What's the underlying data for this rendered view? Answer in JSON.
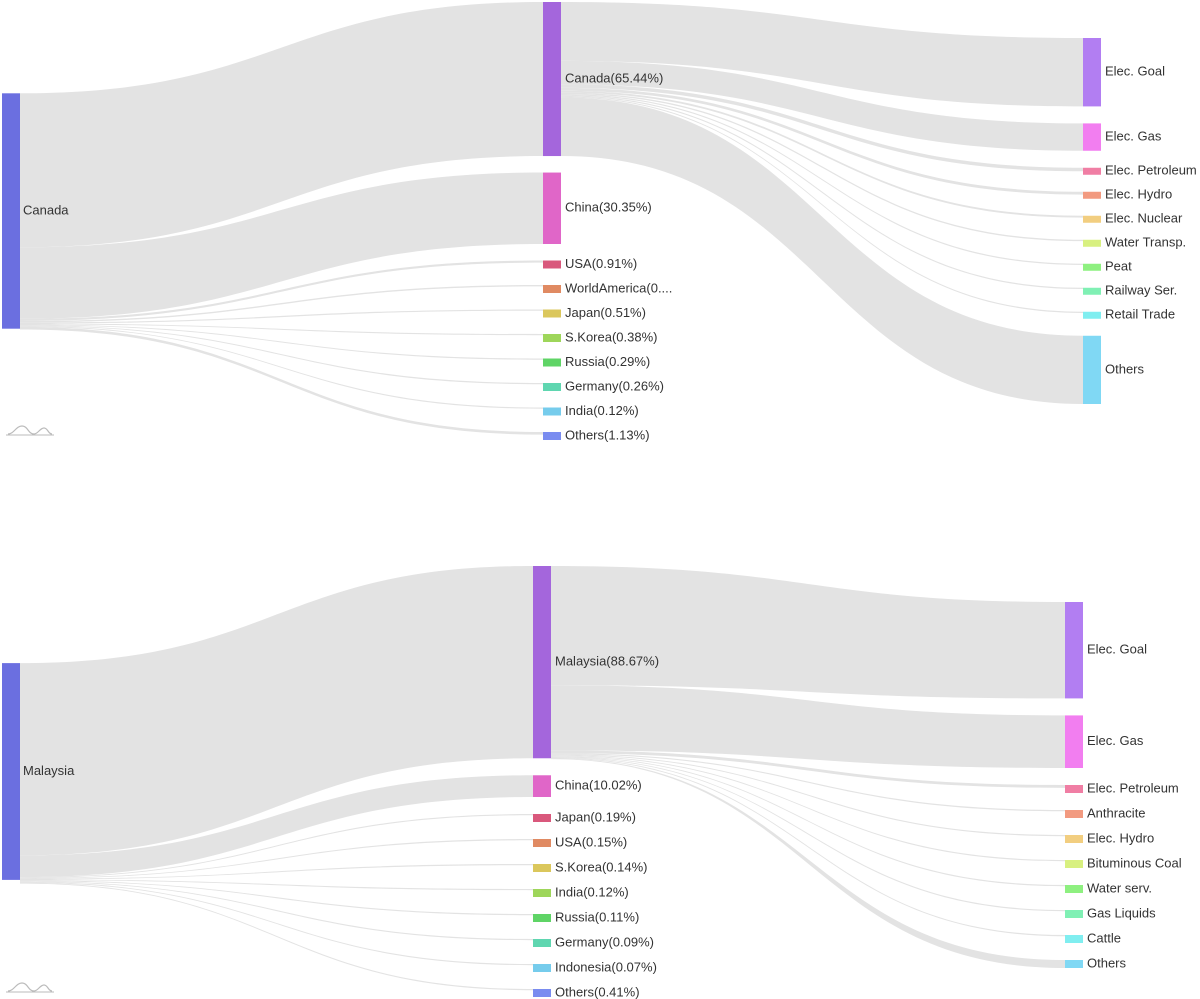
{
  "chart_data": [
    {
      "type": "sankey",
      "name": "canada",
      "source": {
        "label": "Canada",
        "color": "#6b6fe0"
      },
      "countries": [
        {
          "label": "Canada(65.44%)",
          "value": 65.44,
          "color": "#a466dc"
        },
        {
          "label": "China(30.35%)",
          "value": 30.35,
          "color": "#e066c8"
        },
        {
          "label": "USA(0.91%)",
          "value": 0.91,
          "color": "#d9587c"
        },
        {
          "label": "WorldAmerica(0....",
          "value": 0.6,
          "color": "#e08a62"
        },
        {
          "label": "Japan(0.51%)",
          "value": 0.51,
          "color": "#dbc75c"
        },
        {
          "label": "S.Korea(0.38%)",
          "value": 0.38,
          "color": "#9ed65a"
        },
        {
          "label": "Russia(0.29%)",
          "value": 0.29,
          "color": "#5fd466"
        },
        {
          "label": "Germany(0.26%)",
          "value": 0.26,
          "color": "#5fd6b0"
        },
        {
          "label": "India(0.12%)",
          "value": 0.12,
          "color": "#76ccec"
        },
        {
          "label": "Others(1.13%)",
          "value": 1.13,
          "color": "#7a8cf0"
        }
      ],
      "sectors": [
        {
          "label": "Elec. Goal",
          "value": 25.0,
          "color": "#b27ef2"
        },
        {
          "label": "Elec. Gas",
          "value": 10.0,
          "color": "#f27ef0"
        },
        {
          "label": "Elec. Petroleum",
          "value": 1.5,
          "color": "#f07ea4"
        },
        {
          "label": "Elec. Hydro",
          "value": 1.2,
          "color": "#f29a80"
        },
        {
          "label": "Elec. Nuclear",
          "value": 0.8,
          "color": "#f2ce80"
        },
        {
          "label": "Water Transp.",
          "value": 0.6,
          "color": "#d8f080"
        },
        {
          "label": "Peat",
          "value": 0.5,
          "color": "#8ef080"
        },
        {
          "label": "Railway Ser.",
          "value": 0.5,
          "color": "#80f0b4"
        },
        {
          "label": "Retail Trade",
          "value": 0.4,
          "color": "#80eef0"
        },
        {
          "label": "Others",
          "value": 24.94,
          "color": "#80d8f4"
        }
      ]
    },
    {
      "type": "sankey",
      "name": "malaysia",
      "source": {
        "label": "Malaysia",
        "color": "#6b6fe0"
      },
      "countries": [
        {
          "label": "Malaysia(88.67%)",
          "value": 88.67,
          "color": "#a466dc"
        },
        {
          "label": "China(10.02%)",
          "value": 10.02,
          "color": "#e066c8"
        },
        {
          "label": "Japan(0.19%)",
          "value": 0.19,
          "color": "#d9587c"
        },
        {
          "label": "USA(0.15%)",
          "value": 0.15,
          "color": "#e08a62"
        },
        {
          "label": "S.Korea(0.14%)",
          "value": 0.14,
          "color": "#dbc75c"
        },
        {
          "label": "India(0.12%)",
          "value": 0.12,
          "color": "#9ed65a"
        },
        {
          "label": "Russia(0.11%)",
          "value": 0.11,
          "color": "#5fd466"
        },
        {
          "label": "Germany(0.09%)",
          "value": 0.09,
          "color": "#5fd6b0"
        },
        {
          "label": "Indonesia(0.07%)",
          "value": 0.07,
          "color": "#76ccec"
        },
        {
          "label": "Others(0.41%)",
          "value": 0.41,
          "color": "#7a8cf0"
        }
      ],
      "sectors": [
        {
          "label": "Elec. Goal",
          "value": 55.0,
          "color": "#b27ef2"
        },
        {
          "label": "Elec. Gas",
          "value": 30.0,
          "color": "#f27ef0"
        },
        {
          "label": "Elec. Petroleum",
          "value": 1.3,
          "color": "#f07ea4"
        },
        {
          "label": "Anthracite",
          "value": 0.5,
          "color": "#f29a80"
        },
        {
          "label": "Elec. Hydro",
          "value": 0.4,
          "color": "#f2ce80"
        },
        {
          "label": "Bituminous Coal",
          "value": 0.4,
          "color": "#d8f080"
        },
        {
          "label": "Water serv.",
          "value": 0.3,
          "color": "#8ef080"
        },
        {
          "label": "Gas Liquids",
          "value": 0.3,
          "color": "#80f0b4"
        },
        {
          "label": "Cattle",
          "value": 0.2,
          "color": "#80eef0"
        },
        {
          "label": "Others",
          "value": 0.27,
          "color": "#80d8f4"
        }
      ]
    }
  ]
}
